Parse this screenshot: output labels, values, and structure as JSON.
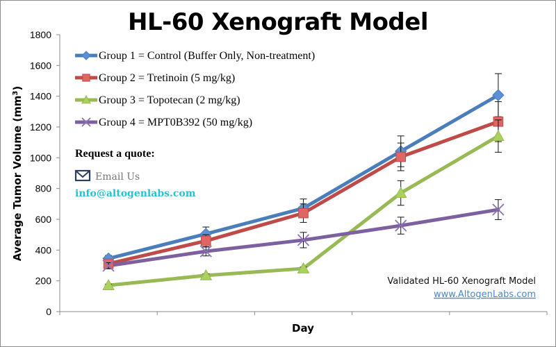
{
  "chart_data": {
    "type": "line",
    "title": "HL-60 Xenograft Model",
    "xlabel": "Day",
    "ylabel": "Average Tumor Volume (mm³)",
    "ylim": [
      0,
      1800
    ],
    "yticks": [
      0,
      200,
      400,
      600,
      800,
      1000,
      1200,
      1400,
      1600,
      1800
    ],
    "categories": [
      "1",
      "2",
      "3",
      "4",
      "5"
    ],
    "show_category_labels": false,
    "grid": false,
    "legend_position": "top-left",
    "series": [
      {
        "name": "Group 1 = Control (Buffer Only, Non-treatment)",
        "color": "#4a7ebb",
        "marker": "diamond",
        "values": [
          345,
          505,
          672,
          1042,
          1407
        ],
        "errors": [
          20,
          45,
          60,
          100,
          140
        ]
      },
      {
        "name": "Group 2 = Tretinoin (5 mg/kg)",
        "color": "#be4b48",
        "marker": "square",
        "values": [
          311,
          460,
          640,
          1006,
          1235
        ],
        "errors": [
          25,
          40,
          60,
          90,
          130
        ]
      },
      {
        "name": "Group 3 = Topotecan (2 mg/kg)",
        "color": "#98b954",
        "marker": "triangle",
        "values": [
          171,
          235,
          280,
          771,
          1141
        ],
        "errors": [
          8,
          10,
          10,
          80,
          105
        ]
      },
      {
        "name": "Group 4 = MPT0B392 (50 mg/kg)",
        "color": "#7d60a0",
        "marker": "x",
        "values": [
          298,
          392,
          465,
          559,
          663
        ],
        "errors": [
          20,
          30,
          50,
          55,
          65
        ]
      }
    ]
  },
  "contact": {
    "heading": "Request a quote:",
    "email_label": "Email Us",
    "email_address": "info@altogenlabs.com"
  },
  "footer": {
    "note": "Validated HL-60 Xenograft Model",
    "link": "www.AltogenLabs.com"
  }
}
